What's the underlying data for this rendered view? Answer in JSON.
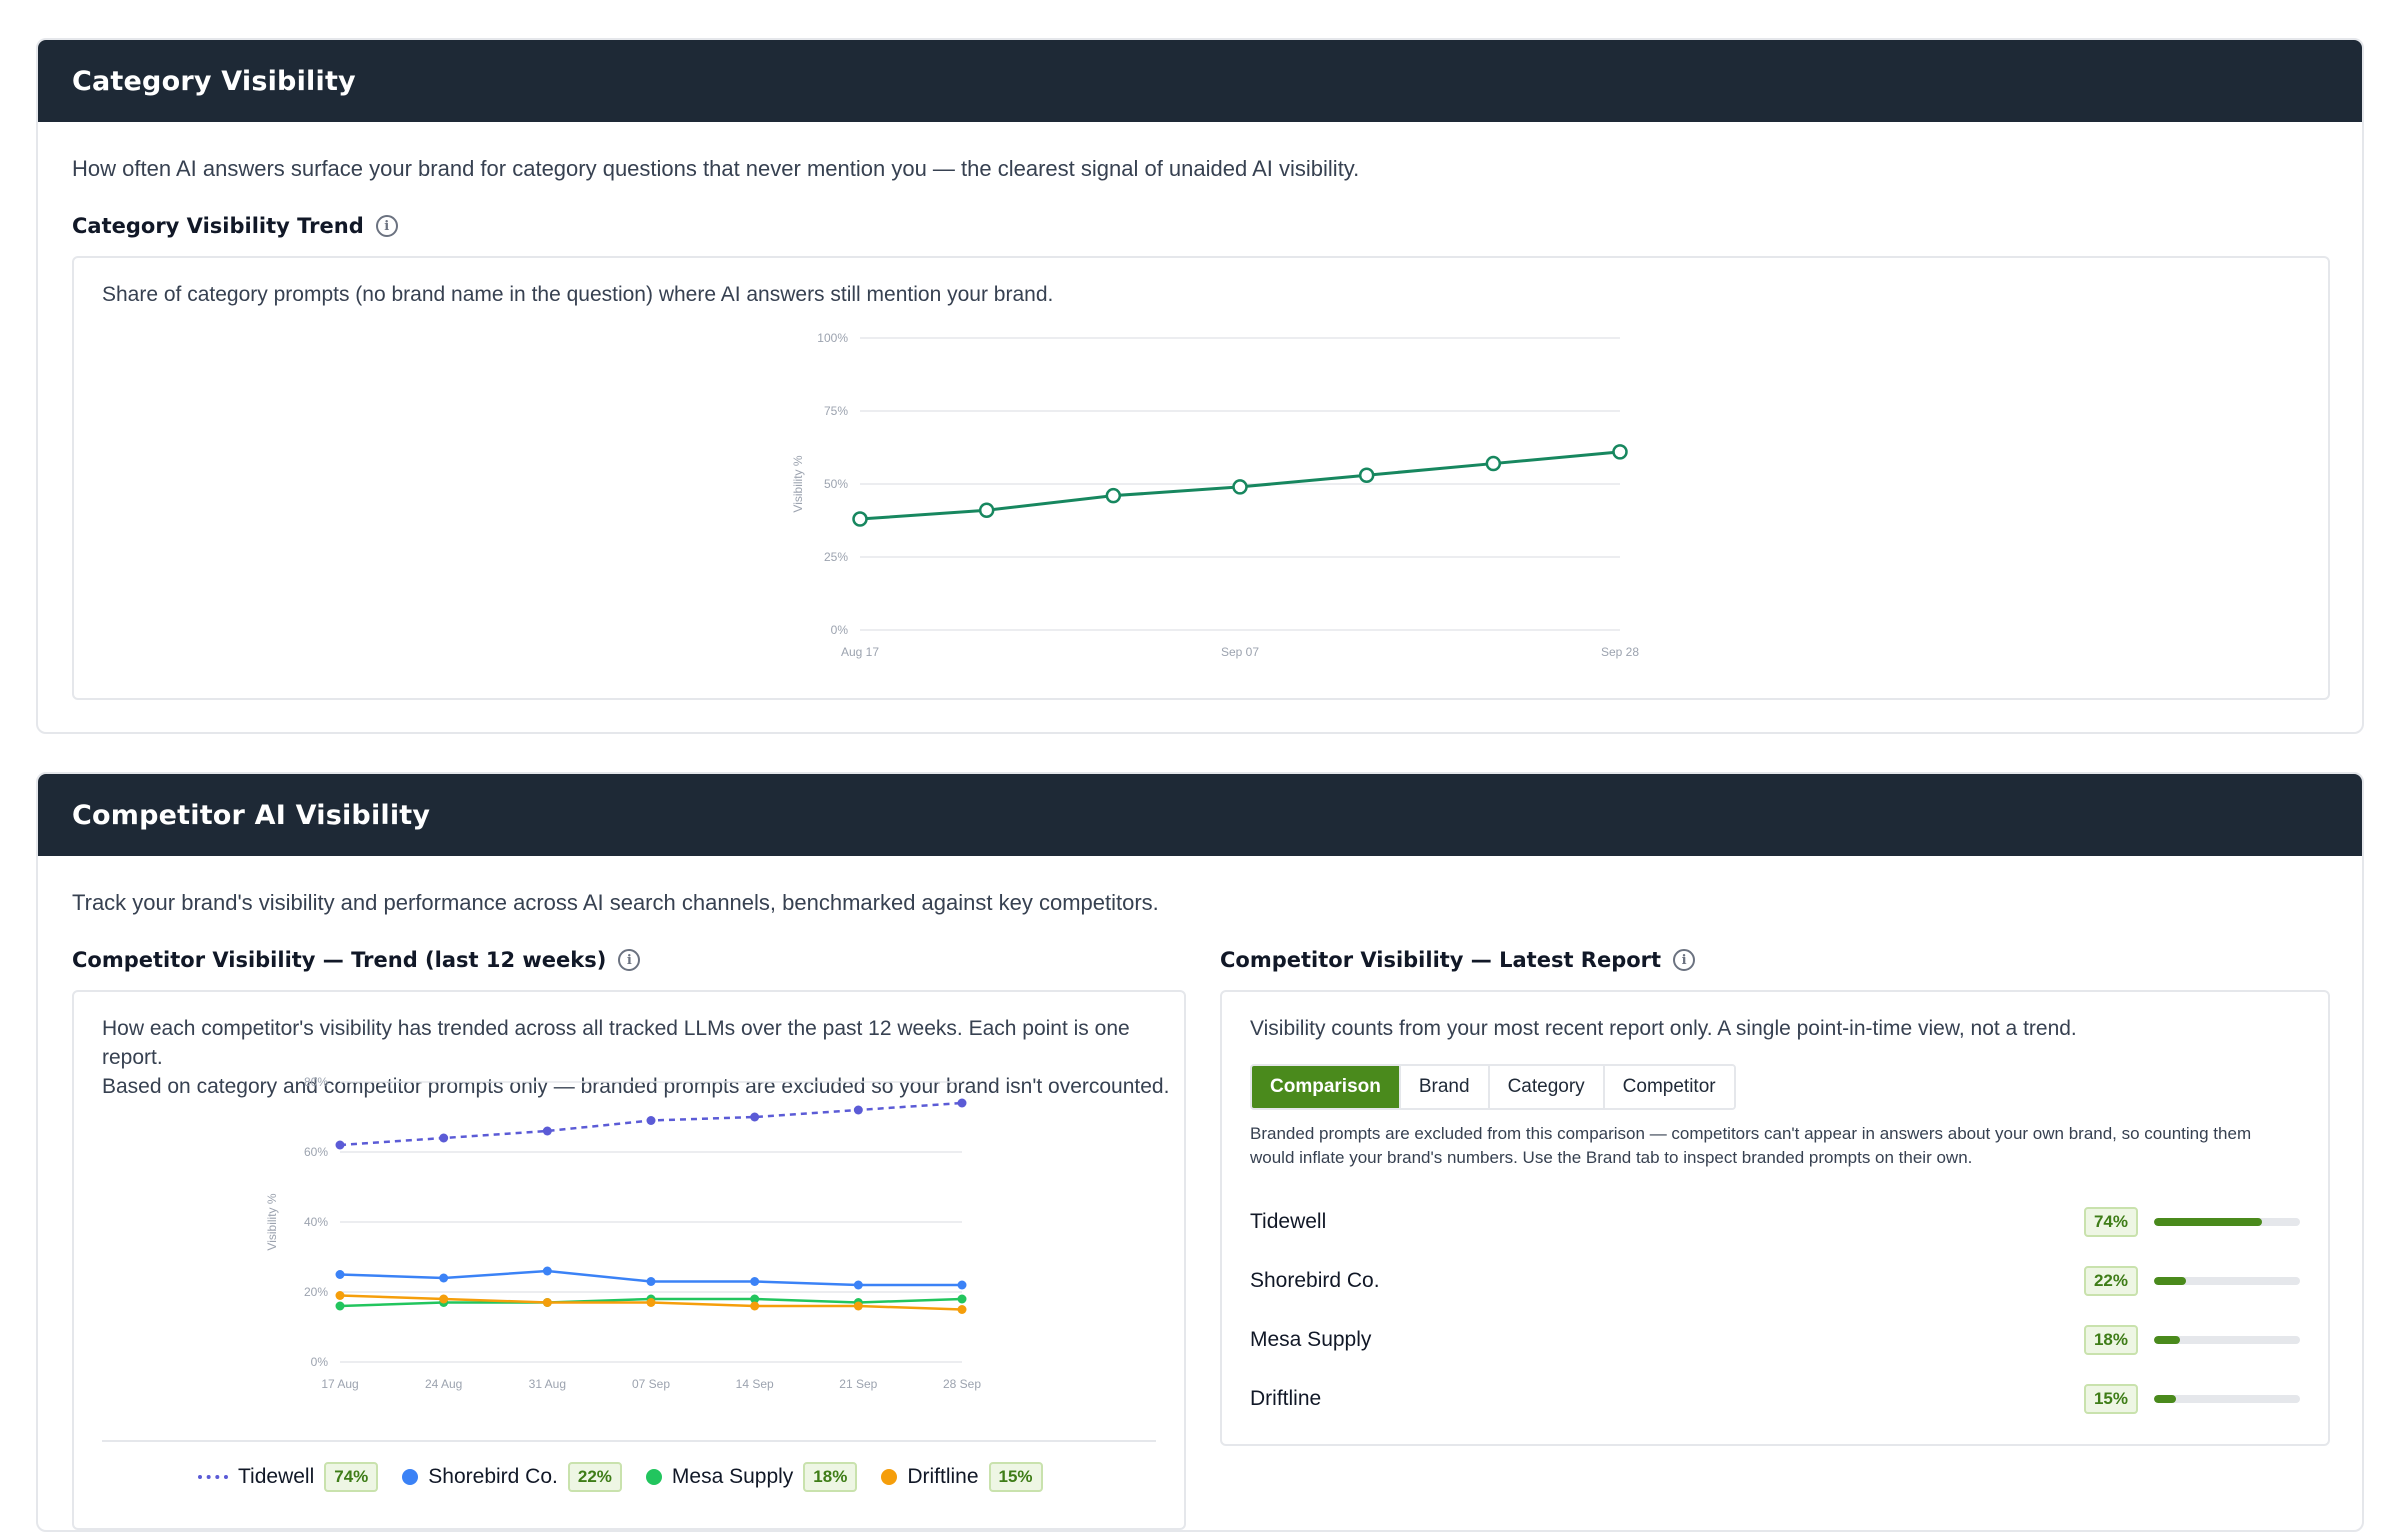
{
  "category_card": {
    "title": "Category Visibility",
    "description": "How often AI answers surface your brand for category questions that never mention you — the clearest signal of unaided AI visibility.",
    "trend_title": "Category Visibility Trend",
    "panel_description": "Share of category prompts (no brand name in the question) where AI answers still mention your brand."
  },
  "competitor_card": {
    "title": "Competitor AI Visibility",
    "description": "Track your brand's visibility and performance across AI search channels, benchmarked against key competitors.",
    "trend_title": "Competitor Visibility — Trend (last 12 weeks)",
    "trend_description_line1": "How each competitor's visibility has trended across all tracked LLMs over the past 12 weeks. Each point is one report.",
    "trend_description_line2": "Based on category and competitor prompts only — branded prompts are excluded so your brand isn't overcounted.",
    "latest_title": "Competitor Visibility — Latest Report",
    "latest_description": "Visibility counts from your most recent report only. A single point-in-time view, not a trend.",
    "tabs": [
      "Comparison",
      "Brand",
      "Category",
      "Competitor"
    ],
    "active_tab": "Comparison",
    "note_line1": "Branded prompts are excluded from this comparison — competitors can't appear in answers about your own brand, so counting them",
    "note_line2": "would inflate your brand's numbers. Use the Brand tab to inspect branded prompts on their own.",
    "rankings": [
      {
        "name": "Tidewell",
        "label": "74%",
        "value": 74
      },
      {
        "name": "Shorebird Co.",
        "label": "22%",
        "value": 22
      },
      {
        "name": "Mesa Supply",
        "label": "18%",
        "value": 18
      },
      {
        "name": "Driftline",
        "label": "15%",
        "value": 15
      }
    ],
    "legend": [
      {
        "name": "Tidewell",
        "label": "74%",
        "color": "#5b5bd6",
        "style": "dashed"
      },
      {
        "name": "Shorebird Co.",
        "label": "22%",
        "color": "#3b82f6",
        "style": "dot"
      },
      {
        "name": "Mesa Supply",
        "label": "18%",
        "color": "#22c55e",
        "style": "dot"
      },
      {
        "name": "Driftline",
        "label": "15%",
        "color": "#f59e0b",
        "style": "dot"
      }
    ]
  },
  "colors": {
    "header_bg": "#1e2936",
    "accent_green": "#4a8a1c",
    "category_line": "#17875f"
  },
  "chart_data": [
    {
      "type": "line",
      "ylabel": "Visibility %",
      "ylim": [
        0,
        100
      ],
      "yticks": [
        "0%",
        "25%",
        "50%",
        "75%",
        "100%"
      ],
      "x": [
        "Aug 17",
        "Aug 24",
        "Aug 31",
        "Sep 07",
        "Sep 14",
        "Sep 21",
        "Sep 28"
      ],
      "xticklabels": [
        "Aug 17",
        "Sep 07",
        "Sep 28"
      ],
      "series": [
        {
          "values": [
            38,
            41,
            46,
            49,
            53,
            57,
            61
          ],
          "color": "#17875f"
        }
      ],
      "grid": true
    },
    {
      "type": "line",
      "ylabel": "Visibility %",
      "ylim": [
        0,
        80
      ],
      "yticks": [
        "0%",
        "20%",
        "40%",
        "60%",
        "80%"
      ],
      "x": [
        "17 Aug",
        "24 Aug",
        "31 Aug",
        "07 Sep",
        "14 Sep",
        "21 Sep",
        "28 Sep"
      ],
      "series": [
        {
          "name": "Tidewell",
          "values": [
            62,
            64,
            66,
            69,
            70,
            72,
            74
          ],
          "color": "#5b5bd6",
          "dashed": true
        },
        {
          "name": "Shorebird Co.",
          "values": [
            25,
            24,
            26,
            23,
            23,
            22,
            22
          ],
          "color": "#3b82f6"
        },
        {
          "name": "Mesa Supply",
          "values": [
            16,
            17,
            17,
            18,
            18,
            17,
            18
          ],
          "color": "#22c55e"
        },
        {
          "name": "Driftline",
          "values": [
            19,
            18,
            17,
            17,
            16,
            16,
            15
          ],
          "color": "#f59e0b"
        }
      ],
      "grid": true
    }
  ]
}
